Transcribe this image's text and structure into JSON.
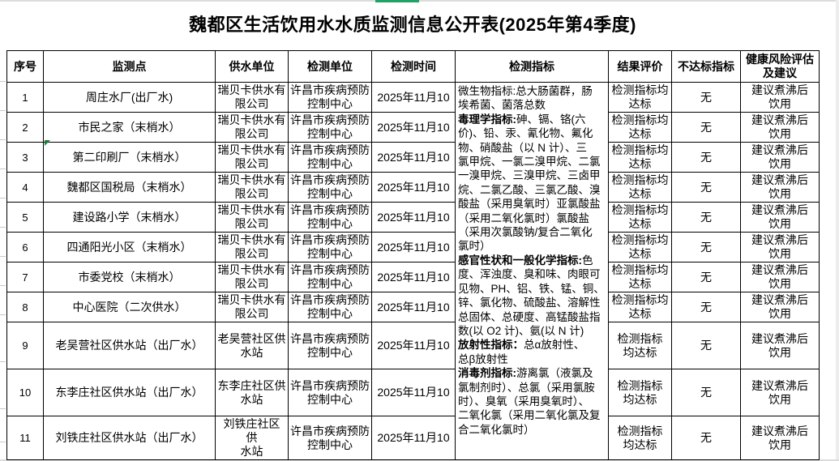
{
  "title": "魏都区生活饮用水水质监测信息公开表(2025年第4季度)",
  "colors": {
    "border": "#000000",
    "background": "#ffffff",
    "green_accent": "#21a366",
    "comment_flag_green": "#1a7f37",
    "edge_gray": "#dcdcdc"
  },
  "table": {
    "headers": [
      "序号",
      "监测点",
      "供水单位",
      "检测单位",
      "检测时间",
      "检测指标",
      "结果评价",
      "不达标指标",
      "健康风险评估\n及建议"
    ],
    "rows": [
      {
        "no": "1",
        "point": "周庄水厂(出厂水)",
        "supplier": "瑞贝卡供水有\n限公司",
        "tester": "许昌市疾病预防\n控制中心",
        "time": "2025年11月10",
        "result": "检测指标均\n达标",
        "substandard": "无",
        "advice": "建议煮沸后\n饮用"
      },
      {
        "no": "2",
        "point": "市民之家（末梢水）",
        "supplier": "瑞贝卡供水有\n限公司",
        "tester": "许昌市疾病预防\n控制中心",
        "time": "2025年11月10",
        "result": "检测指标均\n达标",
        "substandard": "无",
        "advice": "建议煮沸后\n饮用"
      },
      {
        "no": "3",
        "point": "第二印刷厂（末梢水）",
        "supplier": "瑞贝卡供水有\n限公司",
        "tester": "许昌市疾病预防\n控制中心",
        "time": "2025年11月10",
        "result": "检测指标均\n达标",
        "substandard": "无",
        "advice": "建议煮沸后\n饮用"
      },
      {
        "no": "4",
        "point": "魏都区国税局（末梢水）",
        "supplier": "瑞贝卡供水有\n限公司",
        "tester": "许昌市疾病预防\n控制中心",
        "time": "2025年11月10",
        "result": "检测指标均\n达标",
        "substandard": "无",
        "advice": "建议煮沸后\n饮用"
      },
      {
        "no": "5",
        "point": "建设路小学（末梢水）",
        "supplier": "瑞贝卡供水有\n限公司",
        "tester": "许昌市疾病预防\n控制中心",
        "time": "2025年11月10",
        "result": "检测指标均\n达标",
        "substandard": "无",
        "advice": "建议煮沸后\n饮用"
      },
      {
        "no": "6",
        "point": "四通阳光小区（末梢水）",
        "supplier": "瑞贝卡供水有\n限公司",
        "tester": "许昌市疾病预防\n控制中心",
        "time": "2025年11月10",
        "result": "检测指标均\n达标",
        "substandard": "无",
        "advice": "建议煮沸后\n饮用"
      },
      {
        "no": "7",
        "point": "市委党校（末梢水）",
        "supplier": "瑞贝卡供水有\n限公司",
        "tester": "许昌市疾病预防\n控制中心",
        "time": "2025年11月10",
        "result": "检测指标均\n达标",
        "substandard": "无",
        "advice": "建议煮沸后\n饮用"
      },
      {
        "no": "8",
        "point": "中心医院（二次供水）",
        "supplier": "瑞贝卡供水有\n限公司",
        "tester": "许昌市疾病预防\n控制中心",
        "time": "2025年11月10",
        "result": "检测指标均\n达标",
        "substandard": "无",
        "advice": "建议煮沸后\n饮用"
      },
      {
        "no": "9",
        "point": "老吴营社区供水站（出厂水）",
        "supplier": "老吴营社区供\n水站",
        "tester": "许昌市疾病预防\n控制中心",
        "time": "2025年11月10",
        "result": "检测指标\n均达标",
        "substandard": "无",
        "advice": "建议煮沸后\n饮用"
      },
      {
        "no": "10",
        "point": "东李庄社区供水站（出厂水）",
        "supplier": "东李庄社区供\n水站",
        "tester": "许昌市疾病预防\n控制中心",
        "time": "2025年11月10",
        "result": "检测指标\n均达标",
        "substandard": "无",
        "advice": "建议煮沸后\n饮用"
      },
      {
        "no": "11",
        "point": "刘铁庄社区供水站（出厂水）",
        "supplier": "刘铁庄社区 供\n水站",
        "tester": "许昌市疾病预防\n控制中心",
        "time": "2025年11月10",
        "result": "检测指标\n均达标",
        "substandard": "无",
        "advice": "建议煮沸后\n饮用"
      }
    ],
    "indicators": {
      "segments": [
        {
          "b": false,
          "t": "微生物指标:总大肠菌群，肠\n埃希菌、菌落总数\n"
        },
        {
          "b": true,
          "t": "毒理学指标:"
        },
        {
          "b": false,
          "t": "砷、镉、铬(六\n价)、铅、汞、氰化物、氟化\n物、硝酸盐（以 N 计）、三\n氯甲烷、一氯二溴甲烷、二氯\n一溴甲烷、三溴甲烷、三卤甲\n烷、二氯乙酸、三氯乙酸、溴\n酸盐（采用臭氧时）亚氯酸盐\n（采用二氧化氯时）氯酸盐\n（采用次氯酸钠/复合二氧化\n氯时）\n"
        },
        {
          "b": true,
          "t": "感官性状和一般化学指标:"
        },
        {
          "b": false,
          "t": "色\n度、浑浊度、臭和味、肉眼可\n见物、PH、铝、铁、锰、铜、\n锌、氯化物、硫酸盐、溶解性\n总固体、总硬度、高锰酸盐指\n数(以 O2 计)、氨(以 N 计)\n"
        },
        {
          "b": true,
          "t": "放射性指标："
        },
        {
          "b": false,
          "t": "总α放射性、\n总β放射性\n"
        },
        {
          "b": true,
          "t": "消毒剂指标:"
        },
        {
          "b": false,
          "t": "游离氯（液氯及\n氯制剂时）、总氯（采用氯胺\n时）、臭氧（采用臭氧时）、\n二氧化氯（采用二氧化氯及复\n合二氧化氯时）"
        }
      ]
    }
  }
}
